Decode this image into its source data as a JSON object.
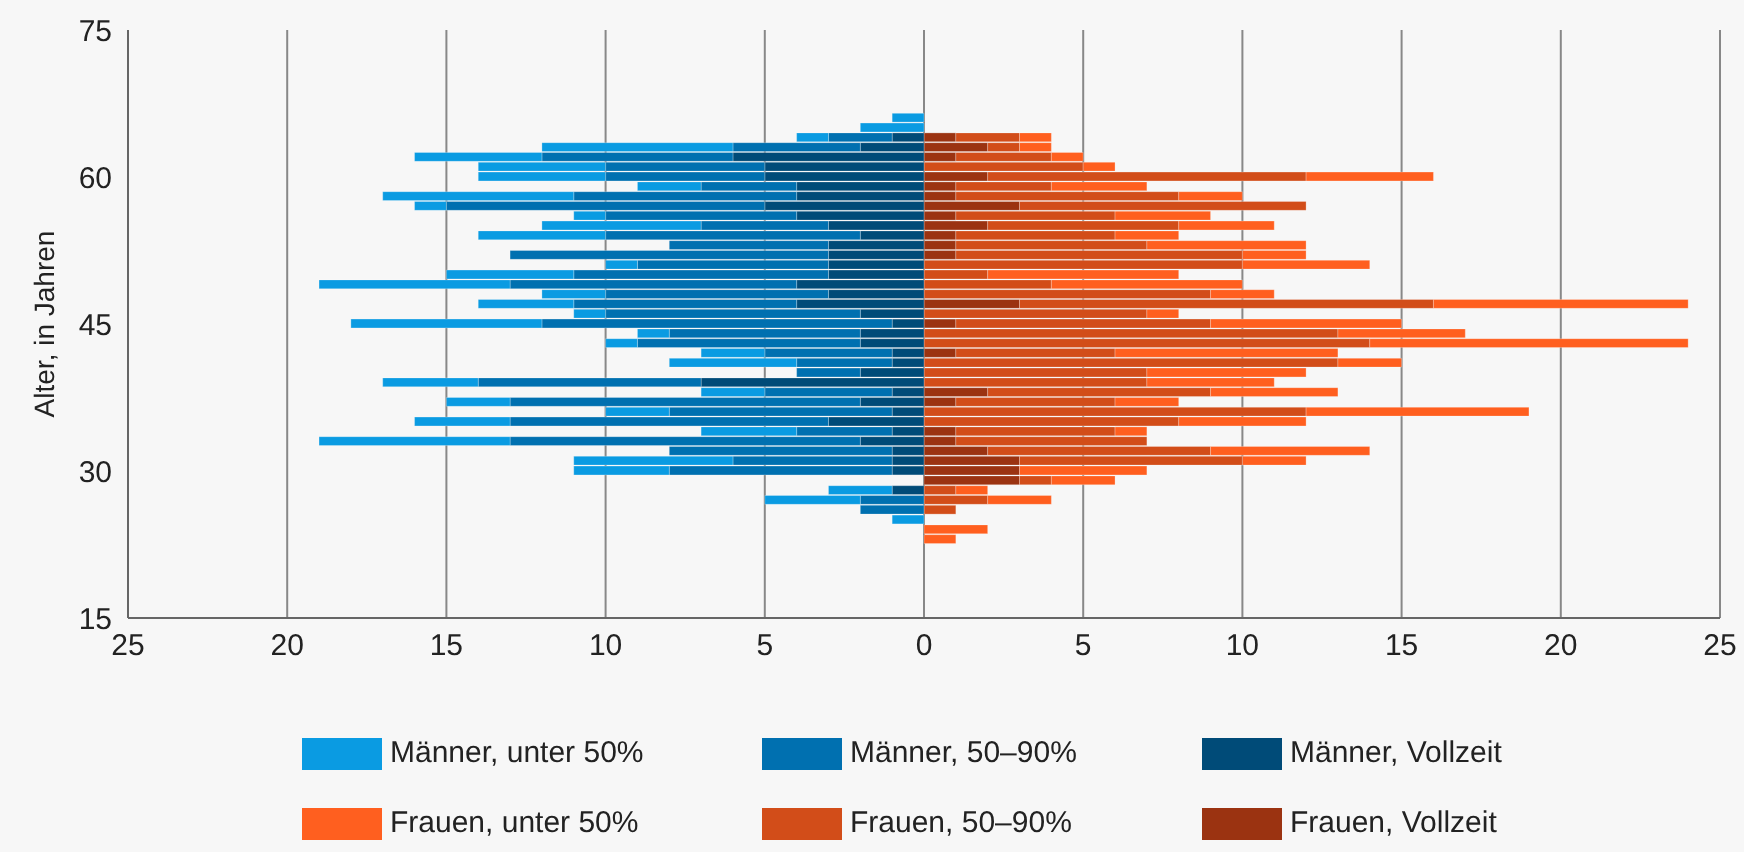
{
  "chart_data": {
    "type": "bar",
    "orientation": "horizontal",
    "stacked": true,
    "ylabel": "Alter, in Jahren",
    "x": [
      66,
      65,
      64,
      63,
      62,
      61,
      60,
      59,
      58,
      57,
      56,
      55,
      54,
      53,
      52,
      51,
      50,
      49,
      48,
      47,
      46,
      45,
      44,
      43,
      42,
      41,
      40,
      39,
      38,
      37,
      36,
      35,
      34,
      33,
      32,
      31,
      30,
      29,
      28,
      27,
      26,
      25,
      24,
      23
    ],
    "series": [
      {
        "name": "Frauen, Vollzeit",
        "color": "#9b3311",
        "values": [
          0,
          0,
          1,
          2,
          1,
          0,
          2,
          1,
          1,
          3,
          1,
          2,
          1,
          1,
          1,
          0,
          0,
          0,
          0,
          3,
          0,
          1,
          0,
          0,
          1,
          0,
          0,
          0,
          2,
          1,
          0,
          0,
          1,
          1,
          2,
          3,
          3,
          3,
          0,
          0,
          0,
          0,
          0,
          0
        ]
      },
      {
        "name": "Frauen, 50–90%",
        "color": "#d24d19",
        "values": [
          0,
          0,
          2,
          1,
          3,
          5,
          10,
          3,
          7,
          9,
          5,
          6,
          5,
          6,
          9,
          10,
          2,
          4,
          9,
          13,
          7,
          8,
          13,
          14,
          5,
          13,
          7,
          7,
          7,
          5,
          12,
          8,
          5,
          6,
          7,
          7,
          0,
          1,
          1,
          2,
          1,
          0,
          0,
          0
        ]
      },
      {
        "name": "Frauen, unter 50%",
        "color": "#ff5f1f",
        "values": [
          0,
          0,
          1,
          1,
          1,
          1,
          4,
          3,
          2,
          0,
          3,
          3,
          2,
          5,
          2,
          4,
          6,
          6,
          2,
          8,
          1,
          6,
          4,
          10,
          7,
          2,
          5,
          4,
          4,
          2,
          7,
          4,
          1,
          0,
          5,
          2,
          4,
          2,
          1,
          2,
          0,
          0,
          2,
          1
        ]
      },
      {
        "name": "Männer, Vollzeit",
        "color": "#004b78",
        "values": [
          0,
          0,
          -1,
          -2,
          -6,
          -5,
          -5,
          -4,
          -4,
          -5,
          -4,
          -3,
          -2,
          -3,
          -3,
          -3,
          -3,
          -4,
          -3,
          -4,
          -2,
          -1,
          -2,
          -2,
          -1,
          -1,
          -2,
          -7,
          -1,
          -2,
          -1,
          -3,
          -1,
          -2,
          -1,
          -1,
          -1,
          0,
          -1,
          0,
          0,
          0,
          0,
          0
        ]
      },
      {
        "name": "Männer, 50–90%",
        "color": "#0070b0",
        "values": [
          0,
          0,
          -2,
          -4,
          -6,
          -5,
          -5,
          -3,
          -7,
          -10,
          -6,
          -4,
          -8,
          -5,
          -10,
          -6,
          -8,
          -9,
          -7,
          -7,
          -8,
          -11,
          -6,
          -7,
          -4,
          -3,
          -2,
          -7,
          -4,
          -11,
          -7,
          -10,
          -3,
          -11,
          -7,
          -5,
          -7,
          0,
          0,
          -2,
          -2,
          0,
          0,
          0
        ]
      },
      {
        "name": "Männer, unter 50%",
        "color": "#0a9be2",
        "values": [
          -1,
          -2,
          -1,
          -6,
          -4,
          -4,
          -4,
          -2,
          -6,
          -1,
          -1,
          -5,
          -4,
          0,
          0,
          -1,
          -4,
          -6,
          -2,
          -3,
          -1,
          -6,
          -1,
          -1,
          -2,
          -4,
          0,
          -3,
          -2,
          -2,
          -2,
          -3,
          -3,
          -6,
          0,
          -5,
          -3,
          0,
          -2,
          -3,
          0,
          -1,
          0,
          0
        ]
      }
    ],
    "xlim": [
      -25,
      25
    ],
    "xticks": [
      {
        "value": -25,
        "label": "25"
      },
      {
        "value": -20,
        "label": "20"
      },
      {
        "value": -15,
        "label": "15"
      },
      {
        "value": -10,
        "label": "10"
      },
      {
        "value": -5,
        "label": "5"
      },
      0,
      5,
      10,
      15,
      20,
      25
    ],
    "ylim": [
      15,
      75
    ],
    "yticks": [
      15,
      30,
      45,
      60,
      75
    ],
    "grid": "x",
    "legend": "bottom"
  }
}
